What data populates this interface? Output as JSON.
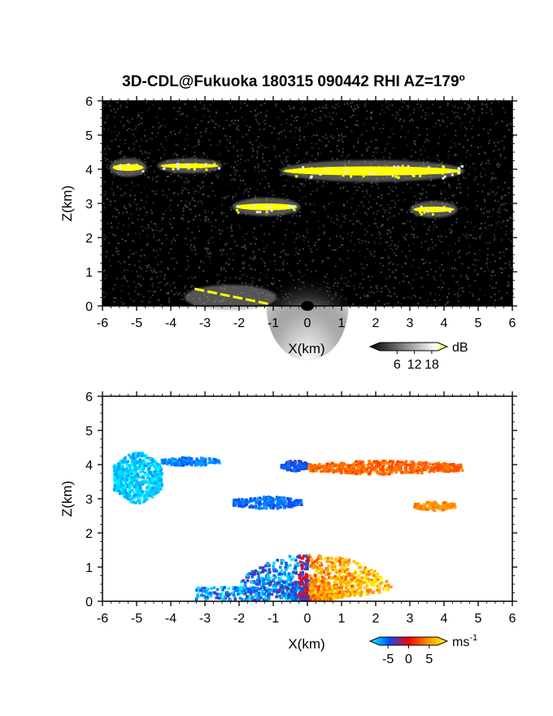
{
  "title_main": "3D-CDL@Fukuoka 180315 090442 RHI AZ=179",
  "title_deg": "o",
  "chart_data": [
    {
      "type": "heatmap",
      "quantity": "SNR",
      "xlabel": "X(km)",
      "ylabel": "Z(km)",
      "xlim": [
        -6,
        6
      ],
      "ylim": [
        0,
        6
      ],
      "xticks": [
        "-6",
        "-5",
        "-4",
        "-3",
        "-2",
        "-1",
        "0",
        "1",
        "2",
        "3",
        "4",
        "5",
        "6"
      ],
      "yticks": [
        "0",
        "1",
        "2",
        "3",
        "4",
        "5",
        "6"
      ],
      "background": "#000000",
      "colorbar": {
        "unit": "dB",
        "tick_labels": [
          "6",
          "12",
          "18"
        ],
        "ticks": [
          6,
          12,
          18
        ],
        "range": [
          0,
          20
        ],
        "max_color": "#ffff00"
      },
      "layers": [
        {
          "x": [
            -5.7,
            -4.8
          ],
          "z": [
            3.9,
            4.2
          ],
          "value": 20
        },
        {
          "x": [
            -4.3,
            -2.6
          ],
          "z": [
            4.0,
            4.2
          ],
          "value": 20
        },
        {
          "x": [
            -0.7,
            4.5
          ],
          "z": [
            3.75,
            4.15
          ],
          "value": 20
        },
        {
          "x": [
            -2.1,
            -0.3
          ],
          "z": [
            2.75,
            3.05
          ],
          "value": 20
        },
        {
          "x": [
            3.1,
            4.3
          ],
          "z": [
            2.7,
            2.95
          ],
          "value": 20
        },
        {
          "x": [
            -3.5,
            -1.0
          ],
          "z": [
            0.0,
            0.5
          ],
          "value": 20
        }
      ]
    },
    {
      "type": "heatmap",
      "quantity": "radial velocity",
      "xlabel": "X(km)",
      "ylabel": "Z(km)",
      "xlim": [
        -6,
        6
      ],
      "ylim": [
        0,
        6
      ],
      "xticks": [
        "-6",
        "-5",
        "-4",
        "-3",
        "-2",
        "-1",
        "0",
        "1",
        "2",
        "3",
        "4",
        "5",
        "6"
      ],
      "yticks": [
        "0",
        "1",
        "2",
        "3",
        "4",
        "5",
        "6"
      ],
      "background": "#ffffff",
      "colorbar": {
        "unit": "ms",
        "unit_exp": "-1",
        "tick_labels": [
          "-5",
          "0",
          "5"
        ],
        "ticks": [
          -5,
          0,
          5
        ],
        "range": [
          -7,
          7
        ]
      },
      "layers": [
        {
          "x": [
            -5.7,
            -4.3
          ],
          "z": [
            2.9,
            4.4
          ],
          "value": -6
        },
        {
          "x": [
            -4.3,
            -2.6
          ],
          "z": [
            4.0,
            4.25
          ],
          "value": -4.5
        },
        {
          "x": [
            -0.8,
            0.0
          ],
          "z": [
            3.85,
            4.15
          ],
          "value": -3.5
        },
        {
          "x": [
            0.0,
            4.5
          ],
          "z": [
            3.75,
            4.15
          ],
          "value": 2.5
        },
        {
          "x": [
            -2.2,
            -0.2
          ],
          "z": [
            2.75,
            3.1
          ],
          "value": -4
        },
        {
          "x": [
            3.1,
            4.3
          ],
          "z": [
            2.7,
            2.95
          ],
          "value": 3.5
        },
        {
          "x": [
            -3.4,
            2.7
          ],
          "z": [
            0.0,
            1.6
          ],
          "value": 0
        }
      ]
    }
  ]
}
